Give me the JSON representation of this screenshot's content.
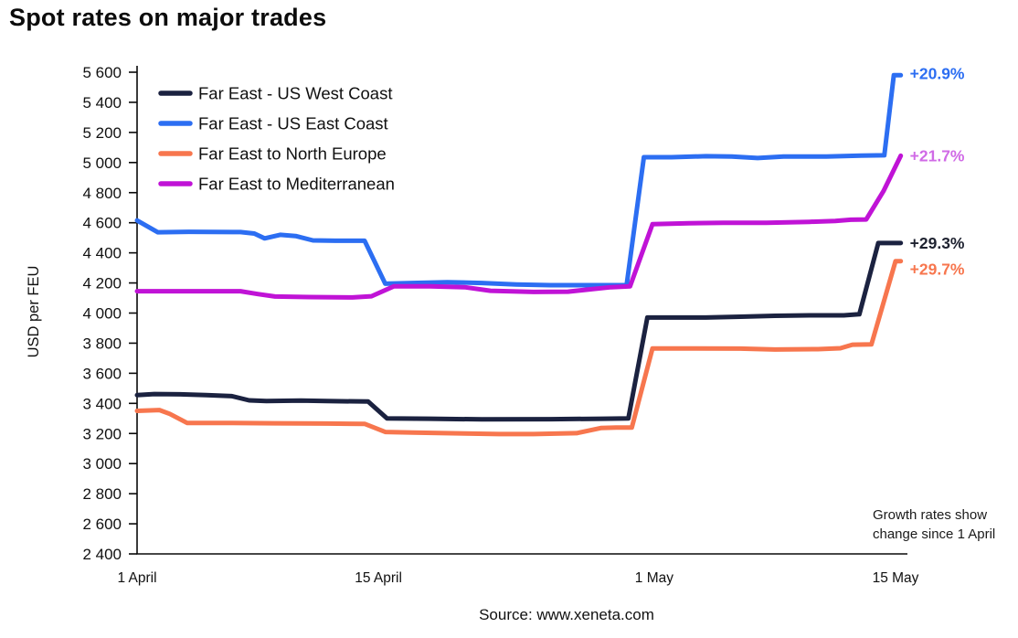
{
  "page": {
    "title": "Spot rates on major trades",
    "annotation": "Growth rates show\nchange since 1 April",
    "source": "Source: www.xeneta.com"
  },
  "chart_data": {
    "type": "line",
    "title": "Spot rates on major trades",
    "xlabel": "",
    "ylabel": "USD per FEU",
    "grid": false,
    "legend_position": "top-left-inside",
    "y_axis": {
      "min": 2400,
      "max": 5600,
      "step": 200
    },
    "x_domain": [
      0,
      44.7
    ],
    "x_ticks": [
      {
        "label": "1 April",
        "day": 0
      },
      {
        "label": "15 April",
        "day": 14
      },
      {
        "label": "1 May",
        "day": 30
      },
      {
        "label": "15 May",
        "day": 44
      }
    ],
    "annotation": "Growth rates show change since 1 April",
    "source": "Source: www.xeneta.com",
    "series": [
      {
        "name": "Far East - US West Coast",
        "color": "#1b2240",
        "label_color": "#1e2230",
        "end_label": "+29.3%",
        "end_label_dy": 0,
        "start_value": 3455,
        "end_value": 4465,
        "points": [
          [
            0,
            3455
          ],
          [
            1,
            3462
          ],
          [
            2.5,
            3460
          ],
          [
            4,
            3455
          ],
          [
            5.5,
            3448
          ],
          [
            6.5,
            3420
          ],
          [
            7.5,
            3415
          ],
          [
            9.5,
            3418
          ],
          [
            11,
            3415
          ],
          [
            13.4,
            3412
          ],
          [
            14.5,
            3300
          ],
          [
            17,
            3298
          ],
          [
            20,
            3294
          ],
          [
            24,
            3295
          ],
          [
            27,
            3298
          ],
          [
            28.5,
            3300
          ],
          [
            29.6,
            3970
          ],
          [
            33,
            3970
          ],
          [
            35,
            3976
          ],
          [
            37,
            3982
          ],
          [
            39,
            3985
          ],
          [
            41,
            3985
          ],
          [
            41.9,
            3992
          ],
          [
            43,
            4465
          ],
          [
            44.3,
            4465
          ]
        ]
      },
      {
        "name": "Far East - US East Coast",
        "color": "#2c6ef2",
        "label_color": "#2c6ef2",
        "end_label": "+20.9%",
        "end_label_dy": -2,
        "start_value": 4615,
        "end_value": 5580,
        "points": [
          [
            0,
            4615
          ],
          [
            1.2,
            4537
          ],
          [
            3,
            4540
          ],
          [
            6,
            4538
          ],
          [
            6.8,
            4528
          ],
          [
            7.4,
            4496
          ],
          [
            8.3,
            4520
          ],
          [
            9.2,
            4512
          ],
          [
            10.2,
            4483
          ],
          [
            11.5,
            4480
          ],
          [
            13.2,
            4480
          ],
          [
            14.4,
            4195
          ],
          [
            16,
            4200
          ],
          [
            18,
            4205
          ],
          [
            20,
            4200
          ],
          [
            22,
            4190
          ],
          [
            24,
            4185
          ],
          [
            26,
            4185
          ],
          [
            28.4,
            4185
          ],
          [
            29.4,
            5035
          ],
          [
            31,
            5035
          ],
          [
            33,
            5042
          ],
          [
            34.5,
            5040
          ],
          [
            36,
            5030
          ],
          [
            37.5,
            5040
          ],
          [
            40,
            5040
          ],
          [
            42,
            5046
          ],
          [
            43.35,
            5048
          ],
          [
            43.9,
            5580
          ],
          [
            44.3,
            5580
          ]
        ]
      },
      {
        "name": "Far East to North Europe",
        "color": "#f7764e",
        "label_color": "#f7764e",
        "end_label": "+29.7%",
        "end_label_dy": 9,
        "start_value": 3350,
        "end_value": 4345,
        "points": [
          [
            0,
            3350
          ],
          [
            1.3,
            3356
          ],
          [
            1.9,
            3330
          ],
          [
            2.9,
            3270
          ],
          [
            5,
            3270
          ],
          [
            8,
            3268
          ],
          [
            11,
            3266
          ],
          [
            13.2,
            3264
          ],
          [
            14.4,
            3210
          ],
          [
            16,
            3206
          ],
          [
            19,
            3200
          ],
          [
            21,
            3196
          ],
          [
            23,
            3196
          ],
          [
            25.5,
            3202
          ],
          [
            26.9,
            3236
          ],
          [
            27.8,
            3240
          ],
          [
            28.7,
            3240
          ],
          [
            29.9,
            3765
          ],
          [
            32,
            3765
          ],
          [
            35,
            3764
          ],
          [
            37,
            3758
          ],
          [
            39.5,
            3760
          ],
          [
            40.8,
            3766
          ],
          [
            41.5,
            3790
          ],
          [
            42.6,
            3792
          ],
          [
            44,
            4345
          ],
          [
            44.3,
            4345
          ]
        ]
      },
      {
        "name": "Far East to Mediterranean",
        "color": "#c013d6",
        "label_color": "#d06ae6",
        "end_label": "+21.7%",
        "end_label_dy": 0,
        "start_value": 4145,
        "end_value": 5045,
        "points": [
          [
            0,
            4145
          ],
          [
            6,
            4145
          ],
          [
            7,
            4126
          ],
          [
            8,
            4110
          ],
          [
            10,
            4106
          ],
          [
            12.5,
            4104
          ],
          [
            13.6,
            4112
          ],
          [
            14.9,
            4178
          ],
          [
            17,
            4178
          ],
          [
            19,
            4172
          ],
          [
            20.5,
            4148
          ],
          [
            23,
            4140
          ],
          [
            25,
            4142
          ],
          [
            26.5,
            4160
          ],
          [
            27.5,
            4172
          ],
          [
            28.6,
            4178
          ],
          [
            29.9,
            4590
          ],
          [
            32,
            4596
          ],
          [
            34,
            4600
          ],
          [
            36.5,
            4600
          ],
          [
            39,
            4606
          ],
          [
            40.5,
            4612
          ],
          [
            41.4,
            4620
          ],
          [
            42.3,
            4622
          ],
          [
            43.3,
            4810
          ],
          [
            44.3,
            5045
          ]
        ]
      }
    ]
  }
}
